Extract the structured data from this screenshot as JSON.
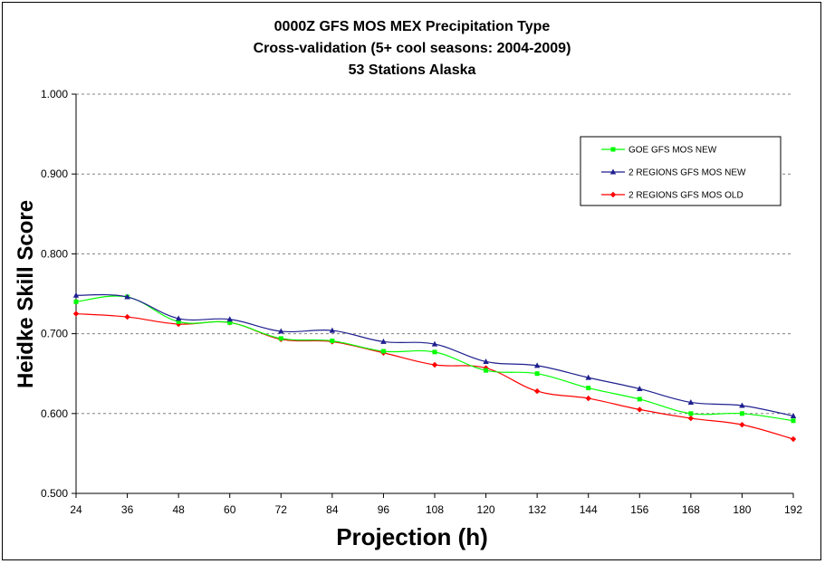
{
  "chart_data": {
    "type": "line",
    "title": [
      "0000Z GFS MOS MEX Precipitation Type",
      "Cross-validation (5+ cool seasons: 2004-2009)",
      "53 Stations Alaska"
    ],
    "xlabel": "Projection (h)",
    "ylabel": "Heidke Skill Score",
    "x": [
      24,
      36,
      48,
      60,
      72,
      84,
      96,
      108,
      120,
      132,
      144,
      156,
      168,
      180,
      192
    ],
    "x_tick_labels": [
      "24",
      "36",
      "48",
      "60",
      "72",
      "84",
      "96",
      "108",
      "120",
      "132",
      "144",
      "156",
      "168",
      "180",
      "192"
    ],
    "ylim": [
      0.5,
      1.0
    ],
    "y_ticks": [
      0.5,
      0.6,
      0.7,
      0.8,
      0.9,
      1.0
    ],
    "y_tick_labels": [
      "0.500",
      "0.600",
      "0.700",
      "0.800",
      "0.900",
      "1.000"
    ],
    "grid": "horizontal dashed",
    "legend_position": "top-right",
    "series": [
      {
        "name": "GOE GFS MOS NEW",
        "color": "#00ff00",
        "marker": "square",
        "values": [
          0.74,
          0.746,
          0.715,
          0.714,
          0.694,
          0.691,
          0.678,
          0.677,
          0.654,
          0.65,
          0.632,
          0.618,
          0.6,
          0.6,
          0.591
        ]
      },
      {
        "name": "2 REGIONS GFS MOS NEW",
        "color": "#1f1f8f",
        "marker": "triangle",
        "values": [
          0.748,
          0.746,
          0.719,
          0.718,
          0.703,
          0.704,
          0.69,
          0.687,
          0.665,
          0.66,
          0.645,
          0.631,
          0.614,
          0.61,
          0.597
        ]
      },
      {
        "name": "2 REGIONS GFS MOS OLD",
        "color": "#ff0000",
        "marker": "diamond",
        "values": [
          0.725,
          0.721,
          0.712,
          0.714,
          0.693,
          0.69,
          0.676,
          0.661,
          0.657,
          0.628,
          0.619,
          0.605,
          0.594,
          0.586,
          0.568
        ]
      }
    ]
  }
}
